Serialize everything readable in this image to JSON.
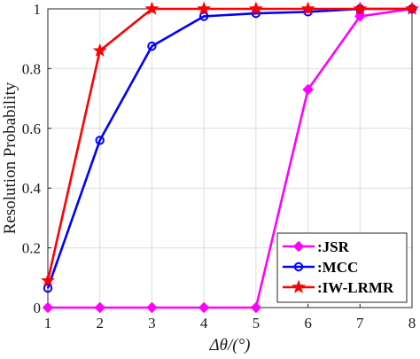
{
  "chart_data": {
    "type": "line",
    "title": "",
    "xlabel": "Δθ/(°)",
    "ylabel": "Resolution Probability",
    "x": [
      1,
      2,
      3,
      4,
      5,
      6,
      7,
      8
    ],
    "xlim": [
      1,
      8
    ],
    "ylim": [
      0,
      1
    ],
    "xticks": [
      1,
      2,
      3,
      4,
      5,
      6,
      7,
      8
    ],
    "yticks": [
      0,
      0.2,
      0.4,
      0.6,
      0.8,
      1
    ],
    "ytick_labels": [
      "0",
      "0.2",
      "0.4",
      "0.6",
      "0.8",
      "1"
    ],
    "grid": true,
    "legend_position": "bottom-right",
    "series": [
      {
        "name": ":JSR",
        "color": "#ff00ff",
        "marker": "diamond",
        "values": [
          0,
          0,
          0,
          0,
          0,
          0.73,
          0.975,
          1
        ]
      },
      {
        "name": ":MCC",
        "color": "#0000ff",
        "marker": "circle",
        "values": [
          0.065,
          0.56,
          0.875,
          0.975,
          0.985,
          0.99,
          1,
          1
        ]
      },
      {
        "name": ":IW-LRMR",
        "color": "#ff0000",
        "marker": "star",
        "values": [
          0.09,
          0.86,
          1,
          1,
          1,
          1,
          1,
          1
        ]
      }
    ]
  }
}
